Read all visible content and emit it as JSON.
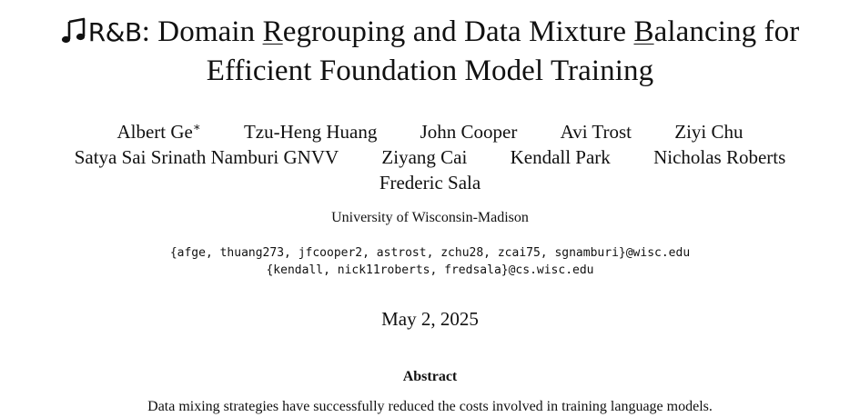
{
  "title": {
    "brand": "R&B",
    "brand_icon": "music-note-icon",
    "line1_after_brand": ": Domain ",
    "underlined_r": "R",
    "line1_mid": "egrouping and Data Mixture ",
    "underlined_b": "B",
    "line1_end": "alancing for",
    "line2": "Efficient Foundation Model Training"
  },
  "authors": {
    "row1": [
      "Albert Ge",
      "Tzu-Heng Huang",
      "John Cooper",
      "Avi Trost",
      "Ziyi Chu"
    ],
    "first_author_mark": "∗",
    "row2": [
      "Satya Sai Srinath Namburi GNVV",
      "Ziyang Cai",
      "Kendall Park",
      "Nicholas Roberts"
    ],
    "row3": [
      "Frederic Sala"
    ]
  },
  "affiliation": "University of Wisconsin-Madison",
  "emails": {
    "line1": "{afge, thuang273, jfcooper2, astrost, zchu28, zcai75, sgnamburi}@wisc.edu",
    "line2": "{kendall, nick11roberts, fredsala}@cs.wisc.edu"
  },
  "date": "May 2, 2025",
  "abstract": {
    "heading": "Abstract",
    "first_line": "Data mixing strategies have successfully reduced the costs involved in training language models."
  }
}
